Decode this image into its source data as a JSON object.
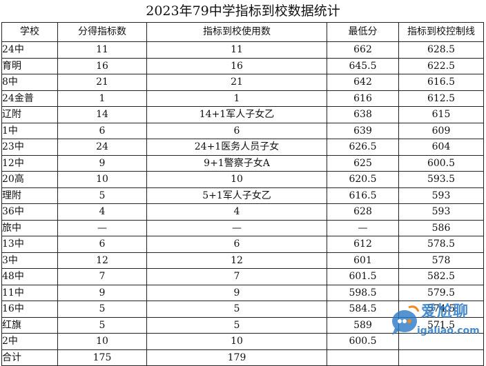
{
  "title": "2023年79中学指标到校数据统计",
  "columns": [
    "学校",
    "分得指标数",
    "指标到校使用数",
    "最低分",
    "指标到校控制线"
  ],
  "rows": [
    [
      "24中",
      "11",
      "11",
      "662",
      "628.5"
    ],
    [
      "育明",
      "16",
      "16",
      "645.5",
      "622.5"
    ],
    [
      "8中",
      "21",
      "21",
      "642",
      "616.5"
    ],
    [
      "24金普",
      "1",
      "1",
      "616",
      "612.5"
    ],
    [
      "辽附",
      "14",
      "14+1军人子女乙",
      "638",
      "615"
    ],
    [
      "1中",
      "6",
      "6",
      "639",
      "609"
    ],
    [
      "23中",
      "24",
      "24+1医务人员子女",
      "626.5",
      "604"
    ],
    [
      "12中",
      "9",
      "9+1警察子女A",
      "625",
      "600.5"
    ],
    [
      "20高",
      "10",
      "10",
      "620.5",
      "593.5"
    ],
    [
      "理附",
      "5",
      "5+1军人子女乙",
      "616.5",
      "593"
    ],
    [
      "36中",
      "4",
      "4",
      "628",
      "593"
    ],
    [
      "旅中",
      "—",
      "—",
      "—",
      "586"
    ],
    [
      "13中",
      "6",
      "6",
      "612",
      "578.5"
    ],
    [
      "3中",
      "12",
      "12",
      "601",
      "578"
    ],
    [
      "48中",
      "7",
      "7",
      "601.5",
      "582.5"
    ],
    [
      "11中",
      "9",
      "9",
      "598.5",
      "579.5"
    ],
    [
      "16中",
      "5",
      "5",
      "584.5",
      "574.5"
    ],
    [
      "红旗",
      "5",
      "5",
      "589",
      "571.5"
    ],
    [
      "2中",
      "10",
      "10",
      "600.5",
      ""
    ]
  ],
  "total": [
    "合计",
    "175",
    "179",
    "",
    ""
  ],
  "watermark": {
    "brand": "爱尬聊",
    "url": "igaliao.com",
    "color": "#2a78c6",
    "icon": "chat-bubble-icon"
  }
}
